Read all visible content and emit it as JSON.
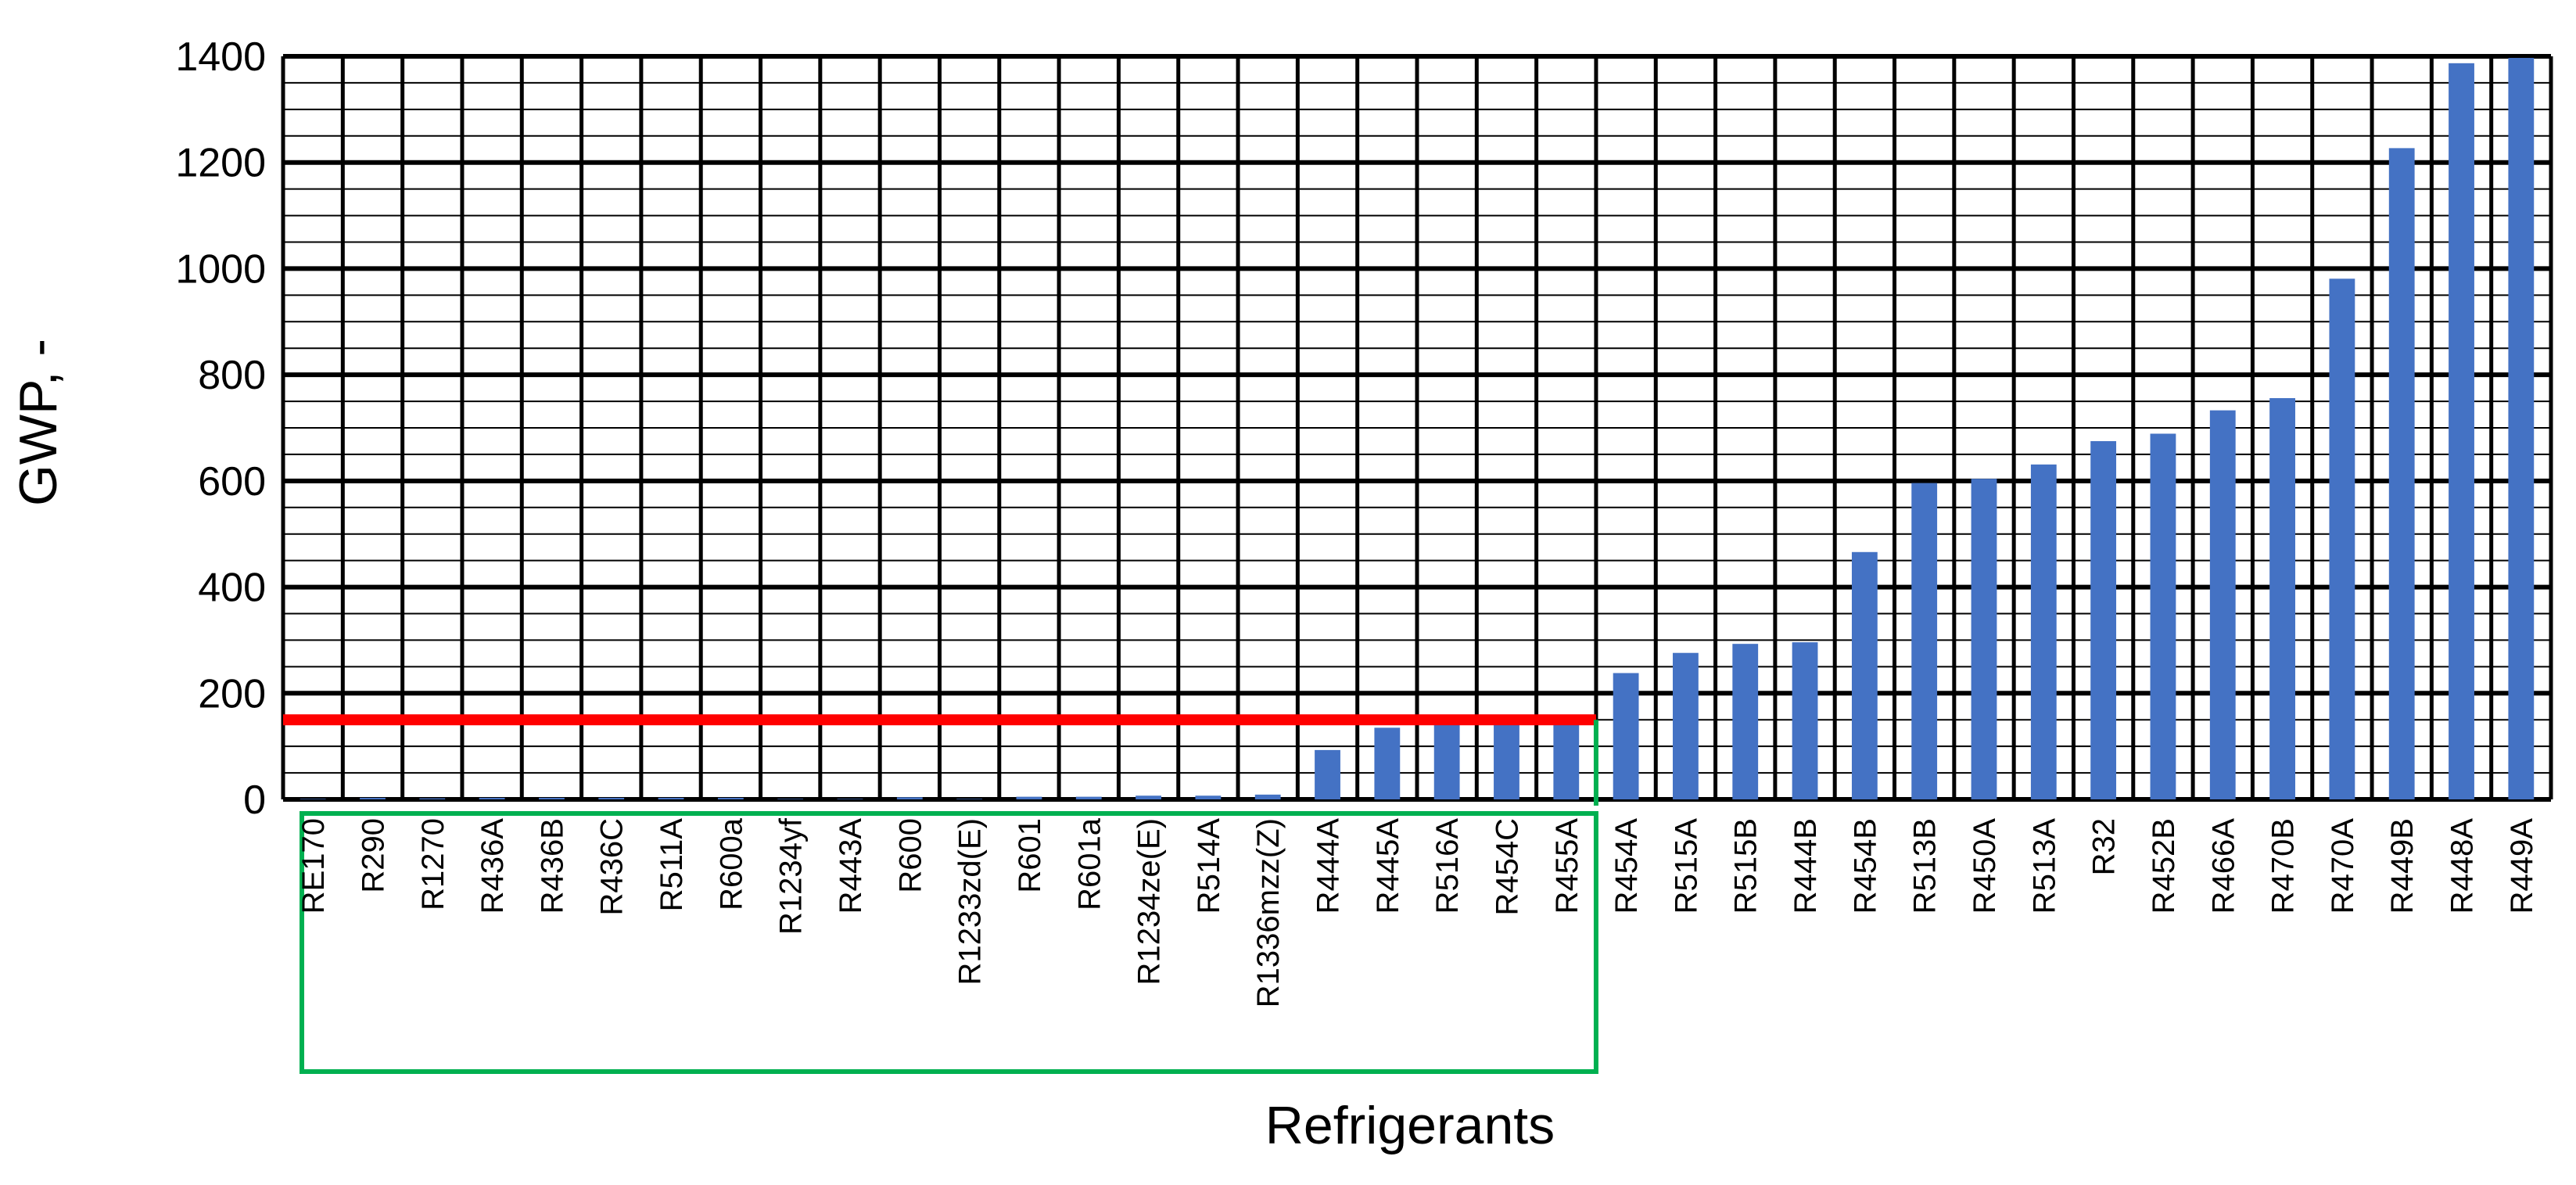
{
  "chart_data": {
    "type": "bar",
    "xlabel": "Refrigerants",
    "ylabel": "GWP, -",
    "ylim": [
      0,
      1400
    ],
    "yticks": [
      0,
      200,
      400,
      600,
      800,
      1000,
      1200,
      1400
    ],
    "y_minor_step": 50,
    "grid": true,
    "categories": [
      "RE170",
      "R290",
      "R1270",
      "R436A",
      "R436B",
      "R436C",
      "R511A",
      "R600a",
      "R1234yf",
      "R443A",
      "R600",
      "R1233zd(E)",
      "R601",
      "R601a",
      "R1234ze(E)",
      "R514A",
      "R1336mzz(Z)",
      "R444A",
      "R445A",
      "R516A",
      "R454C",
      "R455A",
      "R454A",
      "R515A",
      "R515B",
      "R444B",
      "R454B",
      "R513B",
      "R450A",
      "R513A",
      "R32",
      "R452B",
      "R466A",
      "R470B",
      "R470A",
      "R449B",
      "R448A",
      "R449A"
    ],
    "values": [
      1,
      3,
      2,
      3,
      3,
      3,
      3,
      3,
      1,
      1,
      4,
      1,
      5,
      5,
      7,
      7,
      9,
      93,
      135,
      142,
      146,
      146,
      238,
      276,
      293,
      296,
      466,
      596,
      604,
      631,
      675,
      689,
      733,
      756,
      981,
      1227,
      1387,
      1397
    ],
    "bar_color": "#4472C4",
    "threshold_line": {
      "value": 150,
      "color": "#FF0000",
      "spans_categories": [
        "RE170",
        "R455A"
      ]
    },
    "highlight_box": {
      "color": "#00B050",
      "spans_categories": [
        "RE170",
        "R455A"
      ]
    }
  }
}
